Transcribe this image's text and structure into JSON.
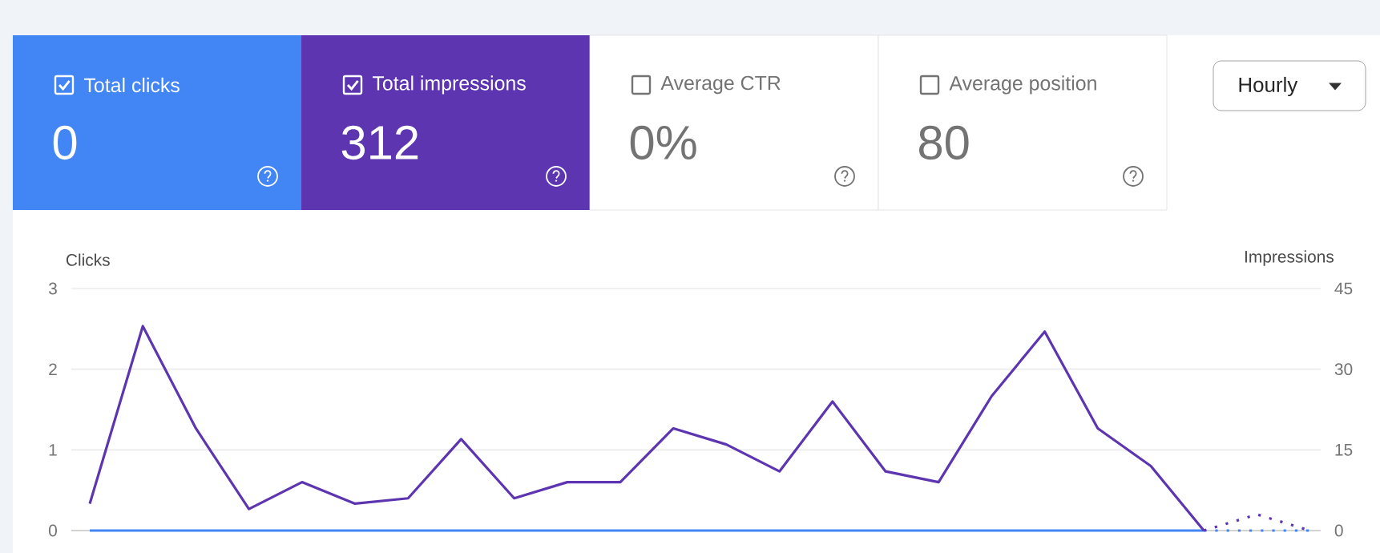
{
  "chart_data": [
    {
      "type": "other",
      "colors": [
        "#4285f4",
        "#5e35b1",
        "#ffffff",
        "#ffffff"
      ],
      "annotations": [
        "Total clicks",
        "0",
        "Total impressions",
        "312",
        "Average CTR",
        "0%",
        "Average position",
        "80",
        "Hourly"
      ]
    },
    {
      "type": "line",
      "ylabel": "Clicks",
      "y2label": "Impressions",
      "grid": "y",
      "marker": "none",
      "categories": [
        null,
        null,
        null,
        null,
        null,
        null,
        null,
        null,
        null,
        null,
        null,
        null,
        null,
        null,
        null,
        null,
        null,
        null,
        null,
        null,
        null,
        null,
        null,
        null
      ],
      "ylim": [
        0,
        3
      ],
      "yticks": [
        0,
        1,
        2,
        3
      ],
      "y2lim": [
        0,
        45
      ],
      "y2ticks": [
        0,
        15,
        30,
        45
      ],
      "series": [
        {
          "color": "#5e35b1",
          "axis": "y2",
          "line_style": "solid",
          "values": [
            5,
            38,
            19,
            4,
            9,
            5,
            6,
            17,
            6,
            9,
            9,
            19,
            16,
            11,
            24,
            11,
            9,
            25,
            37,
            19,
            12,
            0,
            null,
            null
          ]
        },
        {
          "color": "#5e35b1",
          "axis": "y2",
          "line_style": "dotted",
          "values": [
            null,
            null,
            null,
            null,
            null,
            null,
            null,
            null,
            null,
            null,
            null,
            null,
            null,
            null,
            null,
            null,
            null,
            null,
            null,
            null,
            null,
            0,
            3,
            0
          ]
        },
        {
          "color": "#4285f4",
          "line_style": "solid",
          "values": [
            0,
            0,
            0,
            0,
            0,
            0,
            0,
            0,
            0,
            0,
            0,
            0,
            0,
            0,
            0,
            0,
            0,
            0,
            0,
            0,
            0,
            0,
            null,
            null
          ]
        },
        {
          "color": "#4285f4",
          "line_style": "dotted",
          "values": [
            null,
            null,
            null,
            null,
            null,
            null,
            null,
            null,
            null,
            null,
            null,
            null,
            null,
            null,
            null,
            null,
            null,
            null,
            null,
            null,
            null,
            0,
            0,
            0
          ]
        }
      ]
    }
  ]
}
